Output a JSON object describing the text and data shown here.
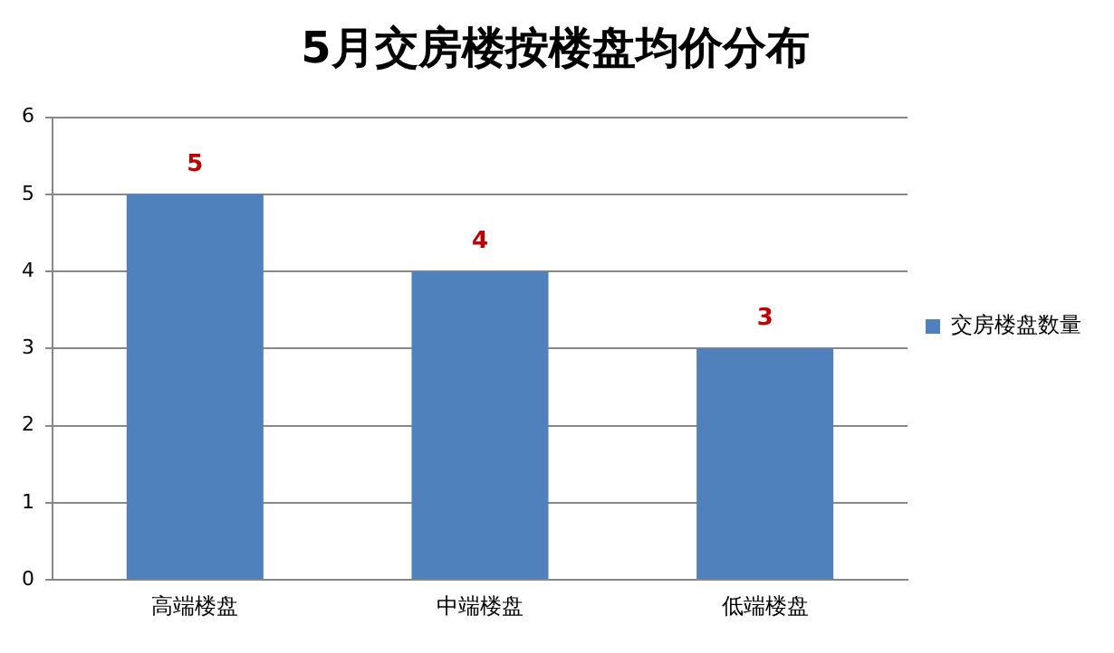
{
  "chart_data": {
    "type": "bar",
    "title": "5月交房楼按楼盘均价分布",
    "categories": [
      "高端楼盘",
      "中端楼盘",
      "低端楼盘"
    ],
    "series": [
      {
        "name": "交房楼盘数量",
        "color": "#4f81bd",
        "values": [
          5,
          4,
          3
        ]
      }
    ],
    "ylim": [
      0,
      6
    ],
    "yticks": [
      0,
      1,
      2,
      3,
      4,
      5,
      6
    ],
    "grid": "y",
    "legend": "right",
    "data_labels": true
  }
}
